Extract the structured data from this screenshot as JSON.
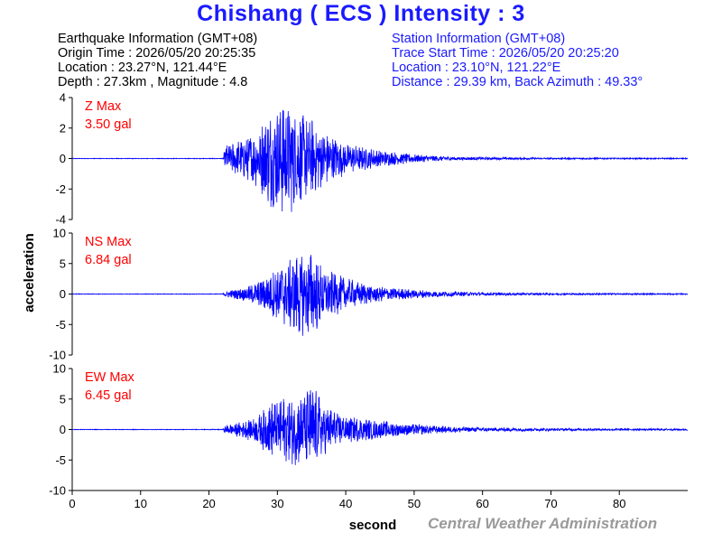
{
  "title": "Chishang ( ECS ) Intensity : 3",
  "earthquake": {
    "heading": "Earthquake Information (GMT+08)",
    "origin_time": "Origin Time : 2026/05/20 20:25:35",
    "location": "Location : 23.27°N, 121.44°E",
    "depth_magnitude": "Depth : 27.3km , Magnitude : 4.8"
  },
  "station": {
    "heading": "Station Information (GMT+08)",
    "trace_start": "Trace Start Time : 2026/05/20 20:25:20",
    "location": "Location : 23.10°N, 121.22°E",
    "distance": "Distance : 29.39 km, Back Azimuth : 49.33°"
  },
  "footer": {
    "credit": "Central Weather Administration"
  },
  "chart_data": {
    "type": "line",
    "xlabel": "second",
    "ylabel": "acceleration",
    "xlim": [
      0,
      90
    ],
    "xticks": [
      0,
      10,
      20,
      30,
      40,
      50,
      60,
      70,
      80
    ],
    "line_color": "#0000ff",
    "label_color": "#ff0000",
    "panels": [
      {
        "name": "Z",
        "label": "Z Max",
        "max_text": "3.50 gal",
        "max": 3.5,
        "ylim": [
          -4,
          4
        ],
        "yticks": [
          -4,
          -2,
          0,
          2,
          4
        ],
        "envelope": [
          [
            0,
            0.02
          ],
          [
            22,
            0.02
          ],
          [
            22.5,
            0.8
          ],
          [
            25,
            1.2
          ],
          [
            27,
            1.7
          ],
          [
            29,
            2.9
          ],
          [
            31,
            3.5
          ],
          [
            33,
            2.8
          ],
          [
            35,
            2.3
          ],
          [
            37,
            1.6
          ],
          [
            40,
            0.9
          ],
          [
            45,
            0.5
          ],
          [
            50,
            0.25
          ],
          [
            55,
            0.12
          ],
          [
            60,
            0.08
          ],
          [
            70,
            0.05
          ],
          [
            80,
            0.04
          ],
          [
            90,
            0.03
          ]
        ]
      },
      {
        "name": "NS",
        "label": "NS Max",
        "max_text": "6.84 gal",
        "max": 6.84,
        "ylim": [
          -10,
          10
        ],
        "yticks": [
          -10,
          -5,
          0,
          5,
          10
        ],
        "envelope": [
          [
            0,
            0.05
          ],
          [
            22,
            0.05
          ],
          [
            22.5,
            0.5
          ],
          [
            25,
            1.0
          ],
          [
            27,
            1.8
          ],
          [
            29,
            3.5
          ],
          [
            31,
            5.0
          ],
          [
            33,
            6.5
          ],
          [
            35,
            6.84
          ],
          [
            37,
            4.0
          ],
          [
            40,
            2.4
          ],
          [
            45,
            1.2
          ],
          [
            50,
            0.7
          ],
          [
            55,
            0.4
          ],
          [
            60,
            0.25
          ],
          [
            70,
            0.15
          ],
          [
            80,
            0.12
          ],
          [
            90,
            0.1
          ]
        ]
      },
      {
        "name": "EW",
        "label": "EW Max",
        "max_text": "6.45 gal",
        "max": 6.45,
        "ylim": [
          -10,
          10
        ],
        "yticks": [
          -10,
          -5,
          0,
          5,
          10
        ],
        "envelope": [
          [
            0,
            0.05
          ],
          [
            22,
            0.05
          ],
          [
            22.5,
            0.7
          ],
          [
            25,
            1.2
          ],
          [
            27,
            2.0
          ],
          [
            29,
            3.9
          ],
          [
            31,
            4.8
          ],
          [
            33,
            5.2
          ],
          [
            35,
            6.45
          ],
          [
            37,
            3.6
          ],
          [
            40,
            2.0
          ],
          [
            45,
            1.3
          ],
          [
            50,
            0.8
          ],
          [
            55,
            0.45
          ],
          [
            60,
            0.3
          ],
          [
            70,
            0.2
          ],
          [
            80,
            0.15
          ],
          [
            90,
            0.12
          ]
        ]
      }
    ]
  }
}
